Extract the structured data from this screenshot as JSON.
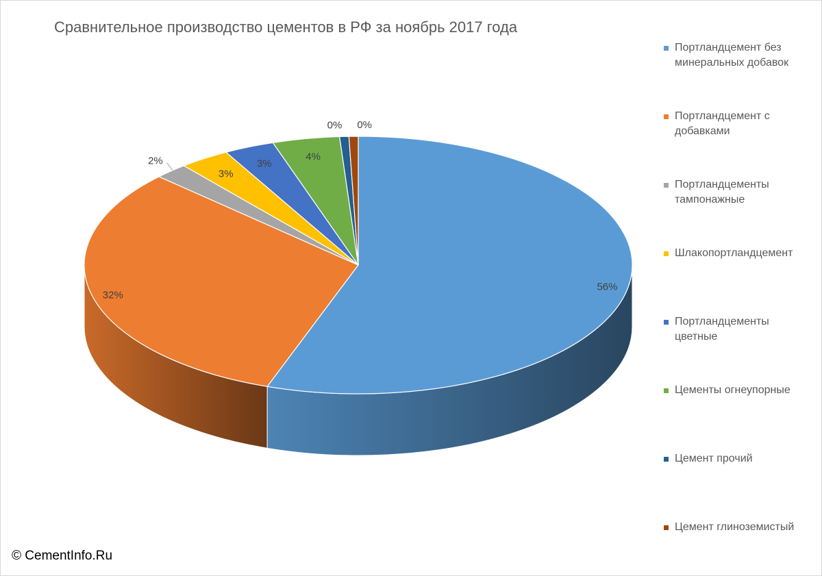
{
  "chart_data": {
    "type": "pie",
    "style": "3d",
    "title": "Сравнительное производство цементов в РФ за ноябрь 2017 года",
    "legend_position": "right",
    "slices": [
      {
        "label": "Портландцемент без минеральных добавок",
        "legend_lines": [
          "Портландцемент без",
          "минеральных добавок"
        ],
        "value": 56,
        "display": "56%",
        "color": "#5b9bd5"
      },
      {
        "label": "Портландцемент с добавками",
        "legend_lines": [
          "Портландцемент с",
          "добавками"
        ],
        "value": 32,
        "display": "32%",
        "color": "#ed7d31"
      },
      {
        "label": "Портландцементы тампонажные",
        "legend_lines": [
          "Портландцементы",
          "тампонажные"
        ],
        "value": 2,
        "display": "2%",
        "color": "#a5a5a5"
      },
      {
        "label": "Шлакопортландцемент",
        "legend_lines": [
          "Шлакопортландцемент"
        ],
        "value": 3,
        "display": "3%",
        "color": "#ffc000"
      },
      {
        "label": "Портландцементы цветные",
        "legend_lines": [
          "Портландцементы",
          "цветные"
        ],
        "value": 3,
        "display": "3%",
        "color": "#4472c4"
      },
      {
        "label": "Цементы огнеупорные",
        "legend_lines": [
          "Цементы огнеупорные"
        ],
        "value": 4,
        "display": "4%",
        "color": "#70ad47"
      },
      {
        "label": "Цемент прочий",
        "legend_lines": [
          "Цемент прочий"
        ],
        "value": 0,
        "display": "0%",
        "color": "#255e91"
      },
      {
        "label": "Цемент глиноземистый",
        "legend_lines": [
          "Цемент глиноземистый"
        ],
        "value": 0,
        "display": "0%",
        "color": "#9e480e"
      }
    ]
  },
  "credit": "© CementInfo.Ru"
}
